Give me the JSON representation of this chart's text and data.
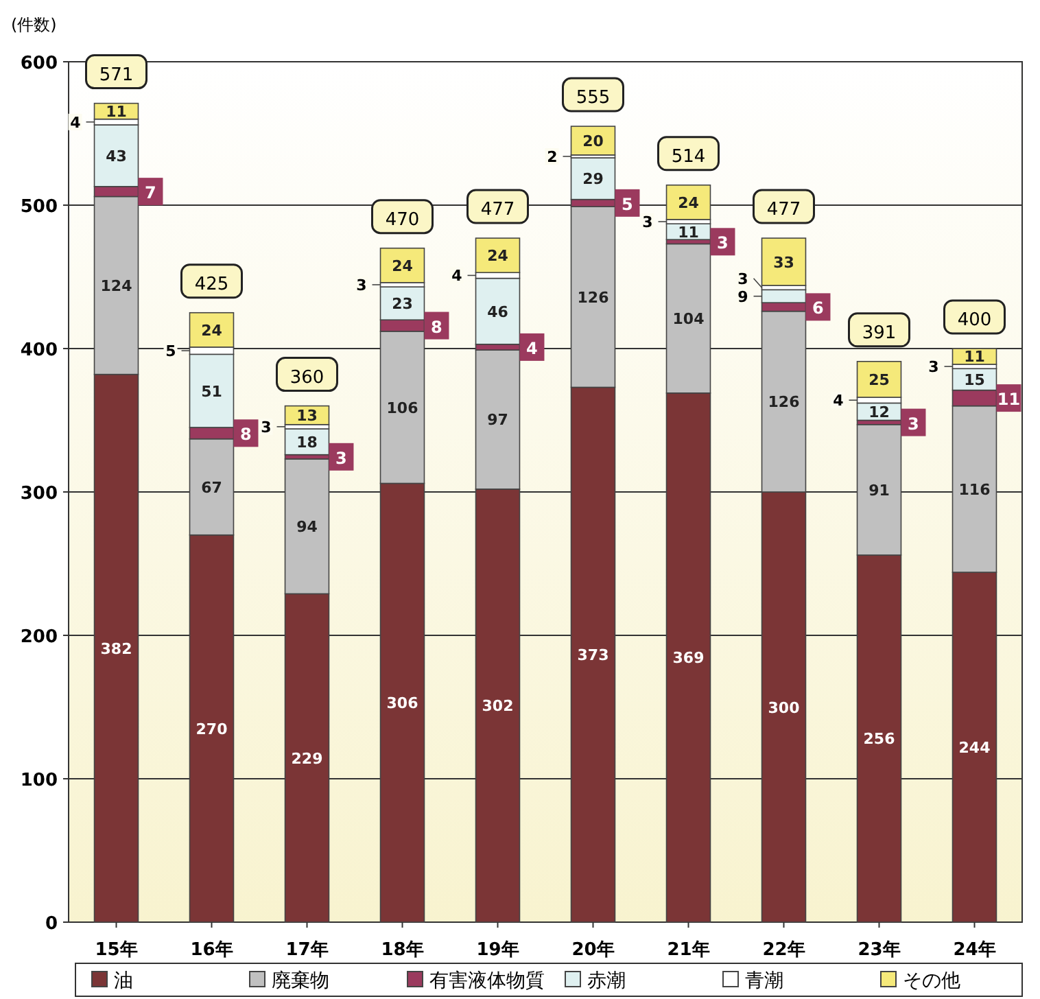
{
  "chart_data": {
    "type": "bar",
    "ylabel": "(件数)",
    "stacked": true,
    "grid": "y",
    "legend": "bottom",
    "data_labels": true,
    "categories": [
      "15年",
      "16年",
      "17年",
      "18年",
      "19年",
      "20年",
      "21年",
      "22年",
      "23年",
      "24年"
    ],
    "ylim": [
      0,
      600
    ],
    "yticks": [
      0,
      100,
      200,
      300,
      400,
      500,
      600
    ],
    "series": [
      {
        "name": "油",
        "color": "#7b3536",
        "values": [
          382,
          270,
          229,
          306,
          302,
          373,
          369,
          300,
          256,
          244
        ]
      },
      {
        "name": "廃棄物",
        "color": "#c0c0c0",
        "values": [
          124,
          67,
          94,
          106,
          97,
          126,
          104,
          126,
          91,
          116
        ]
      },
      {
        "name": "有害液体物質",
        "color": "#9b3a5e",
        "values": [
          7,
          8,
          3,
          8,
          4,
          5,
          3,
          6,
          3,
          11
        ]
      },
      {
        "name": "赤潮",
        "color": "#dff0f0",
        "values": [
          43,
          51,
          18,
          23,
          46,
          29,
          11,
          9,
          12,
          15
        ]
      },
      {
        "name": "青潮",
        "color": "#ffffff",
        "values": [
          4,
          5,
          3,
          3,
          4,
          2,
          3,
          3,
          4,
          3
        ]
      },
      {
        "name": "その他",
        "color": "#f5e97a",
        "values": [
          11,
          24,
          13,
          24,
          24,
          20,
          24,
          33,
          25,
          11
        ]
      }
    ],
    "totals": [
      "571",
      "425",
      "360",
      "470",
      "477",
      "555",
      "514",
      "477",
      "391",
      "400"
    ]
  }
}
